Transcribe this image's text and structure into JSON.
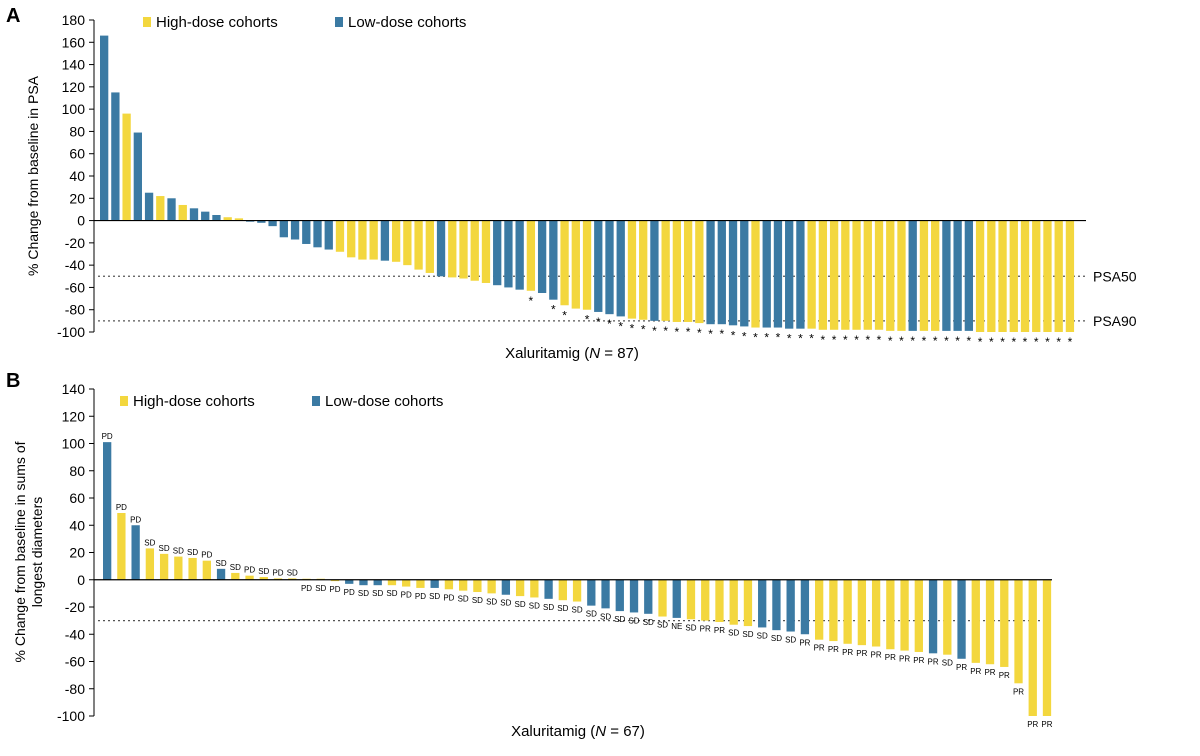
{
  "colors": {
    "high": "#F3D73E",
    "low": "#3B7AA3",
    "axis": "#000000",
    "dotted": "#555555",
    "star": "#000000"
  },
  "chart_data": [
    {
      "panel_label": "A",
      "type": "bar",
      "ylabel": "% Change from baseline in PSA",
      "xlabel_prefix": "Xaluritamig (",
      "xlabel_n": "N",
      "xlabel_suffix": " = 87)",
      "ylim": [
        -100,
        180
      ],
      "yticks": [
        "180",
        "160",
        "140",
        "120",
        "100",
        "80",
        "60",
        "40",
        "20",
        "0",
        "-20",
        "-40",
        "-60",
        "-80",
        "-100"
      ],
      "legend": [
        {
          "label": "High-dose cohorts",
          "key": "high"
        },
        {
          "label": "Low-dose cohorts",
          "key": "low"
        }
      ],
      "reference_lines": [
        {
          "label": "PSA50",
          "value": -50
        },
        {
          "label": "PSA90",
          "value": -90
        }
      ],
      "marker_symbol": "*",
      "groups": [
        "L",
        "L",
        "H",
        "L",
        "L",
        "H",
        "L",
        "H",
        "L",
        "L",
        "L",
        "H",
        "H",
        "L",
        "L",
        "L",
        "L",
        "L",
        "L",
        "L",
        "L",
        "H",
        "H",
        "H",
        "H",
        "L",
        "H",
        "H",
        "H",
        "H",
        "L",
        "H",
        "H",
        "H",
        "H",
        "L",
        "L",
        "L",
        "H",
        "L",
        "L",
        "H",
        "H",
        "H",
        "L",
        "L",
        "L",
        "H",
        "H",
        "L",
        "H",
        "H",
        "H",
        "H",
        "L",
        "L",
        "L",
        "L",
        "H",
        "L",
        "L",
        "L",
        "L",
        "H",
        "H",
        "H",
        "H",
        "H",
        "H",
        "H",
        "H",
        "H",
        "L",
        "H",
        "H",
        "L",
        "L",
        "L",
        "H",
        "H",
        "H",
        "H",
        "H",
        "H",
        "H",
        "H",
        "H"
      ],
      "values": [
        166,
        115,
        96,
        79,
        25,
        22,
        20,
        14,
        11,
        8,
        5,
        3,
        2,
        -1,
        -2,
        -5,
        -15,
        -17,
        -21,
        -24,
        -26,
        -28,
        -33,
        -35,
        -35,
        -36,
        -37,
        -40,
        -44,
        -47,
        -50,
        -51,
        -52,
        -54,
        -56,
        -58,
        -60,
        -62,
        -63,
        -65,
        -71,
        -76,
        -79,
        -80,
        -82,
        -84,
        -86,
        -88,
        -89,
        -90,
        -90,
        -91,
        -91,
        -92,
        -93,
        -93,
        -94,
        -95,
        -96,
        -96,
        -96,
        -97,
        -97,
        -97,
        -98,
        -98,
        -98,
        -98,
        -98,
        -98,
        -99,
        -99,
        -99,
        -99,
        -99,
        -99,
        -99,
        -99,
        -100,
        -100,
        -100,
        -100,
        -100,
        -100,
        -100,
        -100,
        -100
      ],
      "markers": [
        0,
        0,
        0,
        0,
        0,
        0,
        0,
        0,
        0,
        0,
        0,
        0,
        0,
        0,
        0,
        0,
        0,
        0,
        0,
        0,
        0,
        0,
        0,
        0,
        0,
        0,
        0,
        0,
        0,
        0,
        0,
        0,
        0,
        0,
        0,
        0,
        0,
        0,
        1,
        0,
        1,
        1,
        0,
        1,
        1,
        1,
        1,
        1,
        1,
        1,
        1,
        1,
        1,
        1,
        1,
        1,
        1,
        1,
        1,
        1,
        1,
        1,
        1,
        1,
        1,
        1,
        1,
        1,
        1,
        1,
        1,
        1,
        1,
        1,
        1,
        1,
        1,
        1,
        1,
        1,
        1,
        1,
        1,
        1,
        1,
        1,
        1
      ]
    },
    {
      "panel_label": "B",
      "type": "bar",
      "ylabel": "% Change from baseline in sums of longest diameters",
      "xlabel_prefix": "Xaluritamig (",
      "xlabel_n": "N",
      "xlabel_suffix": " = 67)",
      "ylim": [
        -100,
        140
      ],
      "yticks": [
        "140",
        "120",
        "100",
        "80",
        "60",
        "40",
        "20",
        "0",
        "-20",
        "-40",
        "-60",
        "-80",
        "-100"
      ],
      "legend": [
        {
          "label": "High-dose cohorts",
          "key": "high"
        },
        {
          "label": "Low-dose cohorts",
          "key": "low"
        }
      ],
      "reference_lines": [
        {
          "label": "",
          "value": -30
        }
      ],
      "groups": [
        "L",
        "H",
        "L",
        "H",
        "H",
        "H",
        "H",
        "H",
        "L",
        "H",
        "H",
        "H",
        "H",
        "H",
        "H",
        "H",
        "H",
        "L",
        "L",
        "L",
        "H",
        "H",
        "H",
        "L",
        "H",
        "H",
        "H",
        "H",
        "L",
        "H",
        "H",
        "L",
        "H",
        "H",
        "L",
        "L",
        "L",
        "L",
        "L",
        "H",
        "L",
        "H",
        "H",
        "H",
        "H",
        "H",
        "L",
        "L",
        "L",
        "L",
        "H",
        "H",
        "H",
        "H",
        "H",
        "H",
        "H",
        "H",
        "L",
        "H",
        "L",
        "H",
        "H",
        "H",
        "H",
        "H",
        "H"
      ],
      "values": [
        101,
        49,
        40,
        23,
        19,
        17,
        16,
        14,
        8,
        5,
        3,
        2,
        1,
        1,
        0,
        0,
        -1,
        -3,
        -4,
        -4,
        -4,
        -5,
        -6,
        -6,
        -7,
        -8,
        -9,
        -10,
        -11,
        -12,
        -13,
        -14,
        -15,
        -16,
        -19,
        -21,
        -23,
        -24,
        -25,
        -27,
        -28,
        -29,
        -30,
        -31,
        -33,
        -34,
        -35,
        -37,
        -38,
        -40,
        -44,
        -45,
        -47,
        -48,
        -49,
        -51,
        -52,
        -53,
        -54,
        -55,
        -58,
        -61,
        -62,
        -64,
        -76,
        -100,
        -100
      ],
      "bar_labels": [
        "PD",
        "PD",
        "PD",
        "SD",
        "SD",
        "SD",
        "SD",
        "PD",
        "SD",
        "SD",
        "PD",
        "SD",
        "PD",
        "SD",
        "PD",
        "SD",
        "PD",
        "PD",
        "SD",
        "SD",
        "SD",
        "PD",
        "PD",
        "SD",
        "PD",
        "SD",
        "SD",
        "SD",
        "SD",
        "SD",
        "SD",
        "SD",
        "SD",
        "SD",
        "SD",
        "SD",
        "SD",
        "SD",
        "SD",
        "SD",
        "NE",
        "SD",
        "PR",
        "PR",
        "SD",
        "SD",
        "SD",
        "SD",
        "SD",
        "PR",
        "PR",
        "PR",
        "PR",
        "PR",
        "PR",
        "PR",
        "PR",
        "PR",
        "PR",
        "SD",
        "PR",
        "PR",
        "PR",
        "PR",
        "PR",
        "PR",
        "PR"
      ]
    }
  ]
}
